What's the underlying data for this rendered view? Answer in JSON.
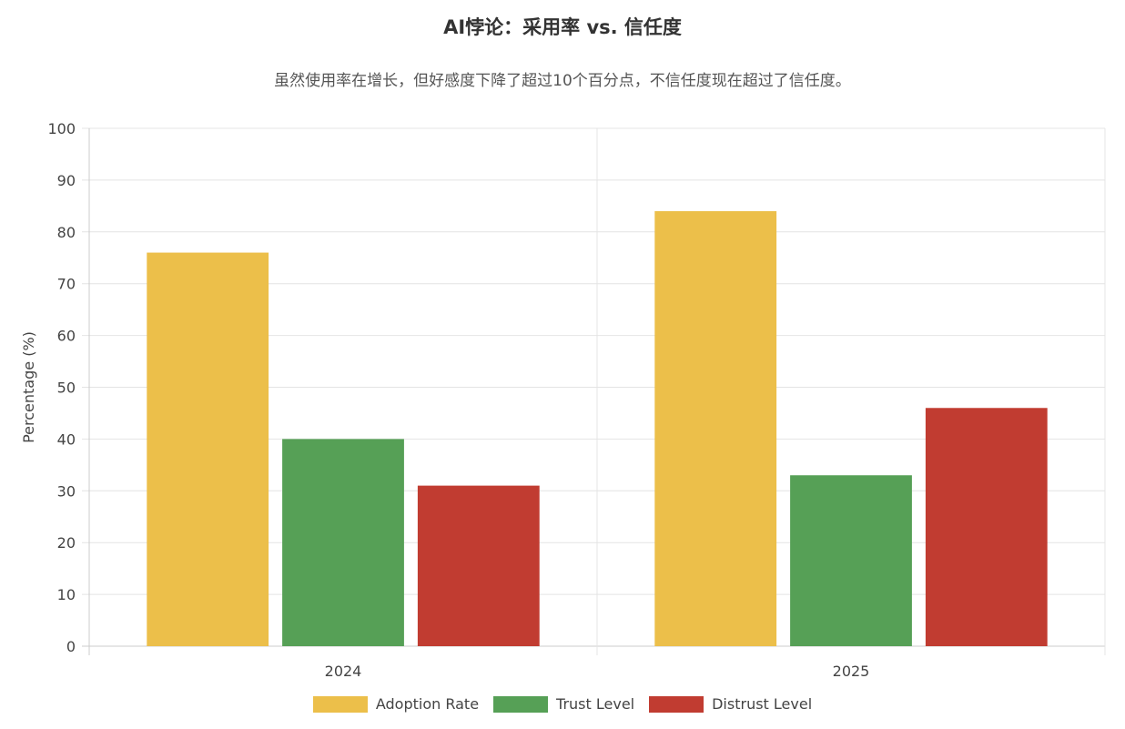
{
  "title": "AI悖论：采用率 vs. 信任度",
  "subtitle": "虽然使用率在增长，但好感度下降了超过10个百分点，不信任度现在超过了信任度。",
  "chart_data": {
    "type": "bar",
    "title": "AI悖论：采用率 vs. 信任度",
    "subtitle": "虽然使用率在增长，但好感度下降了超过10个百分点，不信任度现在超过了信任度。",
    "categories": [
      "2024",
      "2025"
    ],
    "series": [
      {
        "name": "Adoption Rate",
        "values": [
          76,
          84
        ],
        "color": "#ecbf4a"
      },
      {
        "name": "Trust Level",
        "values": [
          40,
          33
        ],
        "color": "#56a056"
      },
      {
        "name": "Distrust Level",
        "values": [
          31,
          46
        ],
        "color": "#c13c31"
      }
    ],
    "xlabel": "",
    "ylabel": "Percentage (%)",
    "ylim": [
      0,
      100
    ],
    "yticks": [
      0,
      10,
      20,
      30,
      40,
      50,
      60,
      70,
      80,
      90,
      100
    ],
    "grid": true,
    "legend_position": "bottom"
  }
}
